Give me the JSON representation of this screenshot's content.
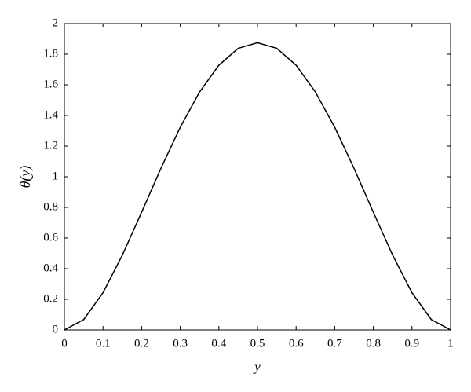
{
  "chart_data": {
    "type": "line",
    "x_label": "y",
    "y_label": "θ(y)",
    "x": [
      0,
      0.05,
      0.1,
      0.15,
      0.2,
      0.25,
      0.3,
      0.35,
      0.4,
      0.45,
      0.5,
      0.55,
      0.6,
      0.65,
      0.7,
      0.75,
      0.8,
      0.85,
      0.9,
      0.95,
      1
    ],
    "series": [
      {
        "color": "#000000",
        "values": [
          0,
          0.068,
          0.243,
          0.488,
          0.768,
          1.055,
          1.323,
          1.553,
          1.728,
          1.838,
          1.875,
          1.838,
          1.728,
          1.553,
          1.323,
          1.055,
          0.768,
          0.488,
          0.243,
          0.068,
          0
        ]
      }
    ],
    "xlim": [
      0,
      1
    ],
    "xticks": [
      0,
      0.1,
      0.2,
      0.3,
      0.4,
      0.5,
      0.6,
      0.7,
      0.8,
      0.9,
      1
    ],
    "ylim": [
      0,
      2
    ],
    "yticks": [
      0,
      0.2,
      0.4,
      0.6,
      0.8,
      1,
      1.2,
      1.4,
      1.6,
      1.8,
      2
    ],
    "grid": false
  }
}
